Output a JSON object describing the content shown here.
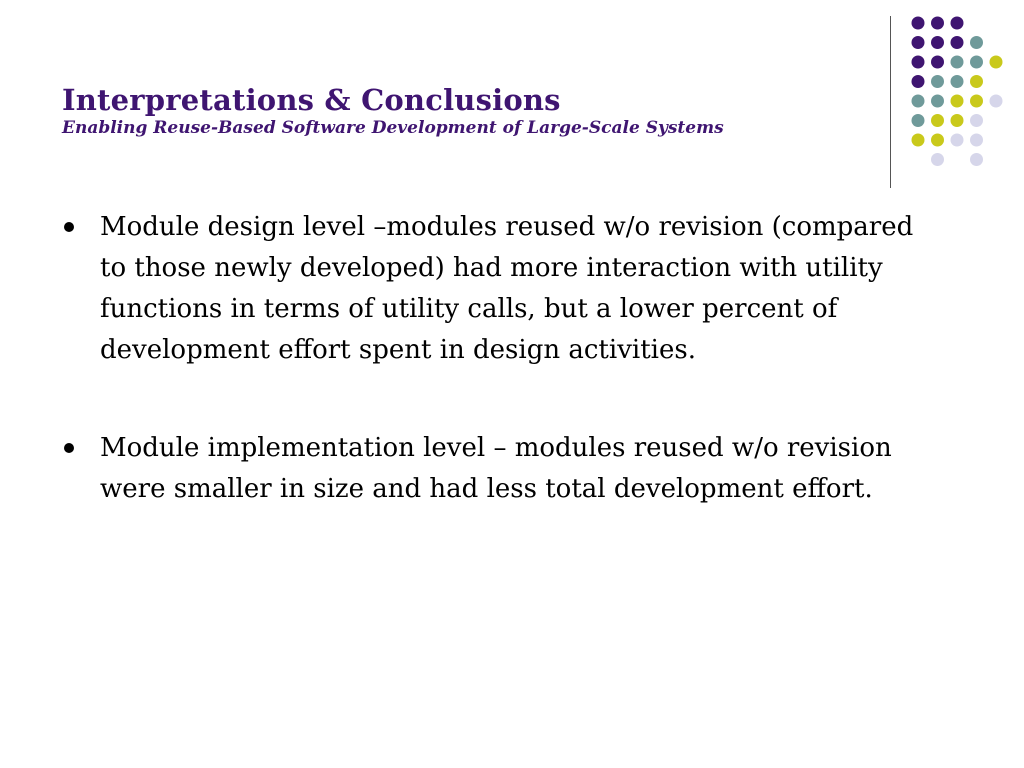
{
  "slide": {
    "title": "Interpretations & Conclusions",
    "subtitle": "Enabling Reuse-Based Software Development of Large-Scale Systems",
    "bullets": [
      "Module design level –modules reused w/o revision (compared to those newly developed) had more interaction with utility functions in terms of utility calls, but a lower percent of development effort spent in design activities.",
      "Module implementation level – modules reused w/o revision were smaller in size and had less total development effort."
    ]
  },
  "theme": {
    "title_color": "#3f1571",
    "dot_colors": {
      "purple": "#3f1571",
      "teal": "#6f9a9a",
      "yellow": "#c9c91b",
      "lavender": "#d6d6ea"
    },
    "dot_grid": [
      [
        "purple",
        "purple",
        "purple",
        "",
        ""
      ],
      [
        "purple",
        "purple",
        "purple",
        "teal",
        ""
      ],
      [
        "purple",
        "purple",
        "teal",
        "teal",
        "yellow"
      ],
      [
        "purple",
        "teal",
        "teal",
        "yellow",
        ""
      ],
      [
        "teal",
        "teal",
        "yellow",
        "yellow",
        "lavender"
      ],
      [
        "teal",
        "yellow",
        "yellow",
        "lavender",
        ""
      ],
      [
        "yellow",
        "yellow",
        "lavender",
        "lavender",
        ""
      ],
      [
        "",
        "lavender",
        "",
        "lavender",
        ""
      ]
    ]
  }
}
